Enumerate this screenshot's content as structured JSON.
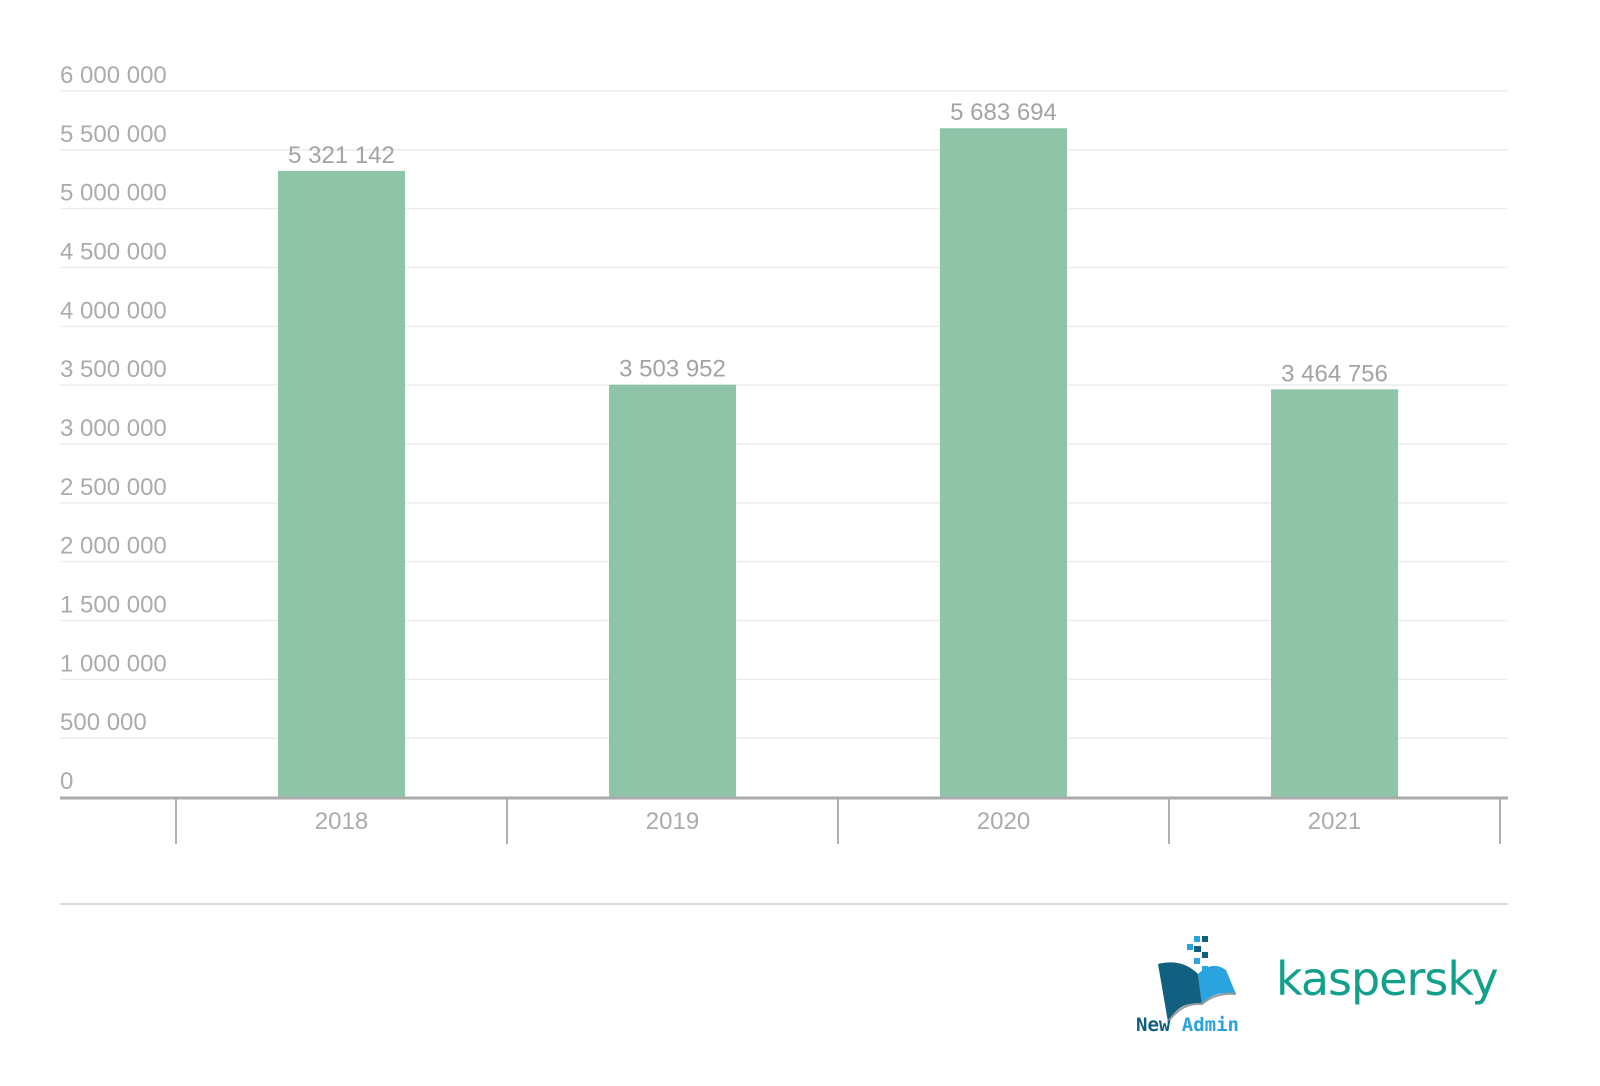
{
  "chart_data": {
    "type": "bar",
    "title": "",
    "xlabel": "",
    "ylabel": "",
    "categories": [
      "2018",
      "2019",
      "2020",
      "2021"
    ],
    "values": [
      5321142,
      3503952,
      5683694,
      3464756
    ],
    "value_labels": [
      "5 321 142",
      "3 503 952",
      "5 683 694",
      "3 464 756"
    ],
    "ylim": [
      0,
      6000000
    ],
    "yticks": [
      0,
      500000,
      1000000,
      1500000,
      2000000,
      2500000,
      3000000,
      3500000,
      4000000,
      4500000,
      5000000,
      5500000,
      6000000
    ],
    "ytick_labels": [
      "0",
      "500 000",
      "1 000 000",
      "1 500 000",
      "2 000 000",
      "2 500 000",
      "3 000 000",
      "3 500 000",
      "4 000 000",
      "4 500 000",
      "5 000 000",
      "5 500 000",
      "6 000 000"
    ],
    "grid": true,
    "legend": "none",
    "bar_color": "#8fc4a8"
  },
  "logos": {
    "newadmin_new": "New",
    "newadmin_admin": "Admin",
    "kaspersky": "kaspersky"
  },
  "colors": {
    "kaspersky": "#11a18a",
    "newadmin_dark": "#11607f",
    "newadmin_light": "#2aa3de"
  }
}
